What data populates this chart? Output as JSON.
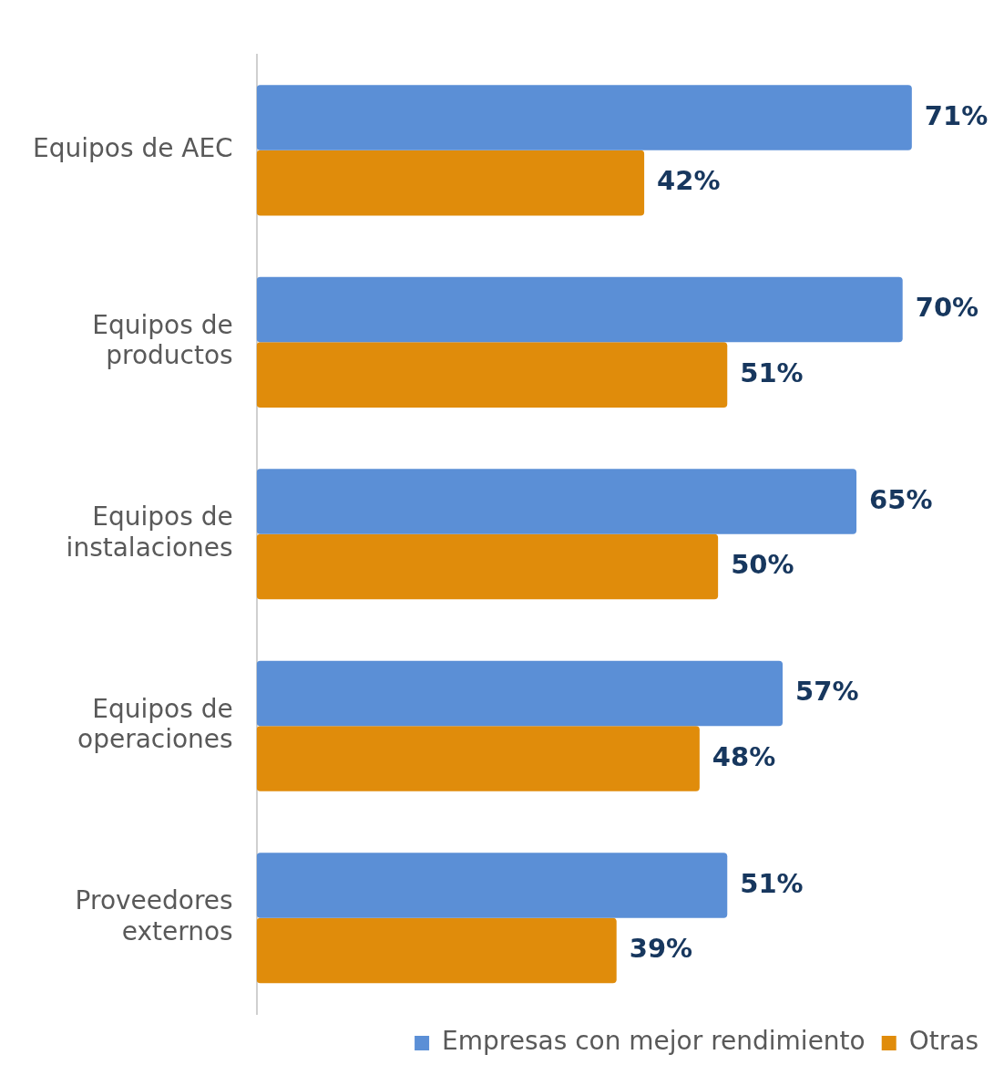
{
  "chart_data": {
    "type": "bar",
    "orientation": "horizontal",
    "categories": [
      "Equipos de AEC",
      "Equipos de productos",
      "Equipos de instalaciones",
      "Equipos de operaciones",
      "Proveedores externos"
    ],
    "series": [
      {
        "name": "Empresas con mejor rendimiento",
        "color": "#5b8fd6",
        "values": [
          71,
          70,
          65,
          57,
          51
        ],
        "value_labels": [
          "71%",
          "70%",
          "65%",
          "57%",
          "51%"
        ]
      },
      {
        "name": "Otras",
        "color": "#e08c0b",
        "values": [
          42,
          51,
          50,
          48,
          39
        ],
        "value_labels": [
          "42%",
          "51%",
          "50%",
          "48%",
          "39%"
        ]
      }
    ],
    "tick_labels": "y",
    "grid": false,
    "legend": "bottom"
  }
}
